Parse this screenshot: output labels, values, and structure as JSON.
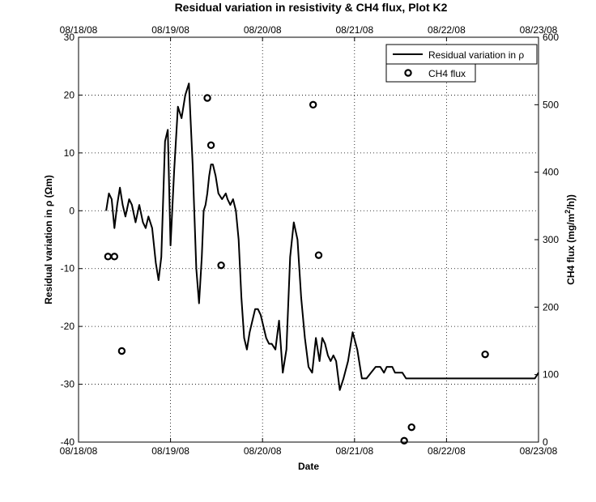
{
  "chart_data": {
    "type": "line",
    "title": "Residual variation in resistivity &  CH4 flux, Plot K2",
    "xlabel": "Date",
    "ylabel_left": "Residual variation in  ρ  (Ωm)",
    "ylabel_right_prefix": "CH4 flux (mg/m",
    "ylabel_right_sup": "2",
    "ylabel_right_suffix": "/h))",
    "x_ticks": [
      "08/18/08",
      "08/19/08",
      "08/20/08",
      "08/21/08",
      "08/22/08",
      "08/23/08"
    ],
    "xlim_days": [
      0,
      5
    ],
    "ylim_left": [
      -40,
      30
    ],
    "yticks_left": [
      -40,
      -30,
      -20,
      -10,
      0,
      10,
      20,
      30
    ],
    "ylim_right": [
      0,
      600
    ],
    "yticks_right": [
      0,
      100,
      200,
      300,
      400,
      500,
      600
    ],
    "grid": true,
    "legend_placement": "top-right",
    "series": [
      {
        "name": "Residual variation in ρ",
        "axis": "left",
        "style": "line",
        "color": "#000000",
        "x": [
          0.3,
          0.33,
          0.36,
          0.39,
          0.42,
          0.45,
          0.48,
          0.51,
          0.55,
          0.58,
          0.62,
          0.66,
          0.7,
          0.73,
          0.76,
          0.8,
          0.84,
          0.87,
          0.9,
          0.94,
          0.97,
          1.0,
          1.04,
          1.08,
          1.12,
          1.16,
          1.2,
          1.24,
          1.28,
          1.31,
          1.34,
          1.36,
          1.38,
          1.4,
          1.42,
          1.44,
          1.46,
          1.49,
          1.52,
          1.56,
          1.6,
          1.62,
          1.65,
          1.68,
          1.71,
          1.74,
          1.77,
          1.8,
          1.83,
          1.86,
          1.89,
          1.92,
          1.95,
          1.98,
          2.01,
          2.04,
          2.07,
          2.1,
          2.14,
          2.18,
          2.22,
          2.26,
          2.3,
          2.34,
          2.38,
          2.42,
          2.46,
          2.5,
          2.54,
          2.58,
          2.62,
          2.65,
          2.68,
          2.71,
          2.74,
          2.77,
          2.8,
          2.84,
          2.88,
          2.93,
          2.98,
          3.03,
          3.08,
          3.13,
          3.18,
          3.23,
          3.28,
          3.32,
          3.35,
          3.38,
          3.41,
          3.44,
          3.46,
          3.48,
          3.52,
          3.56,
          3.6,
          3.64,
          3.68,
          3.72,
          3.76,
          3.8,
          3.84,
          3.88,
          3.92,
          3.96,
          4.0,
          4.04,
          4.08,
          4.12,
          4.16,
          4.2,
          4.24,
          4.28,
          4.32,
          4.36,
          4.4,
          4.44,
          4.48,
          4.52,
          4.56,
          4.6,
          4.64,
          4.68,
          4.72,
          4.76,
          4.8,
          4.84,
          4.88,
          4.92,
          4.96,
          5.0
        ],
        "y": [
          0,
          3,
          2,
          -3,
          1,
          4,
          1,
          -1,
          2,
          1,
          -2,
          1,
          -2,
          -3,
          -1,
          -3,
          -9,
          -12,
          -8,
          12,
          14,
          -6,
          7,
          18,
          16,
          20,
          22,
          8,
          -10,
          -16,
          -8,
          0,
          1,
          3,
          6,
          8,
          8,
          6,
          3,
          2,
          3,
          2,
          1,
          2,
          0,
          -5,
          -15,
          -22,
          -24,
          -21,
          -19,
          -17,
          -17,
          -18,
          -20,
          -22,
          -23,
          -23,
          -24,
          -19,
          -28,
          -24,
          -8,
          -2,
          -5,
          -15,
          -22,
          -27,
          -28,
          -22,
          -26,
          -22,
          -23,
          -25,
          -26,
          -25,
          -26,
          -31,
          -29,
          -26,
          -21,
          -24,
          -29,
          -29,
          -28,
          -27,
          -27,
          -28,
          -27,
          -27,
          -27,
          -28,
          -28,
          -28,
          -28,
          -29,
          -29,
          -29,
          -29,
          -29,
          -29,
          -29,
          -29,
          -29,
          -29,
          -29,
          -29,
          -29,
          -29,
          -29,
          -29,
          -29,
          -29,
          -29,
          -29,
          -29,
          -29,
          -29,
          -29,
          -29,
          -29,
          -29,
          -29,
          -29,
          -29,
          -29,
          -29,
          -29,
          -29,
          -29,
          -29,
          -28
        ]
      },
      {
        "name": "CH4 flux",
        "axis": "right",
        "style": "marker",
        "color": "#000000",
        "x": [
          0.32,
          0.39,
          0.47,
          1.4,
          1.44,
          1.55,
          2.55,
          2.61,
          3.54,
          3.62,
          4.42
        ],
        "y": [
          275,
          275,
          135,
          510,
          440,
          262,
          500,
          277,
          2,
          22,
          130
        ]
      }
    ]
  }
}
